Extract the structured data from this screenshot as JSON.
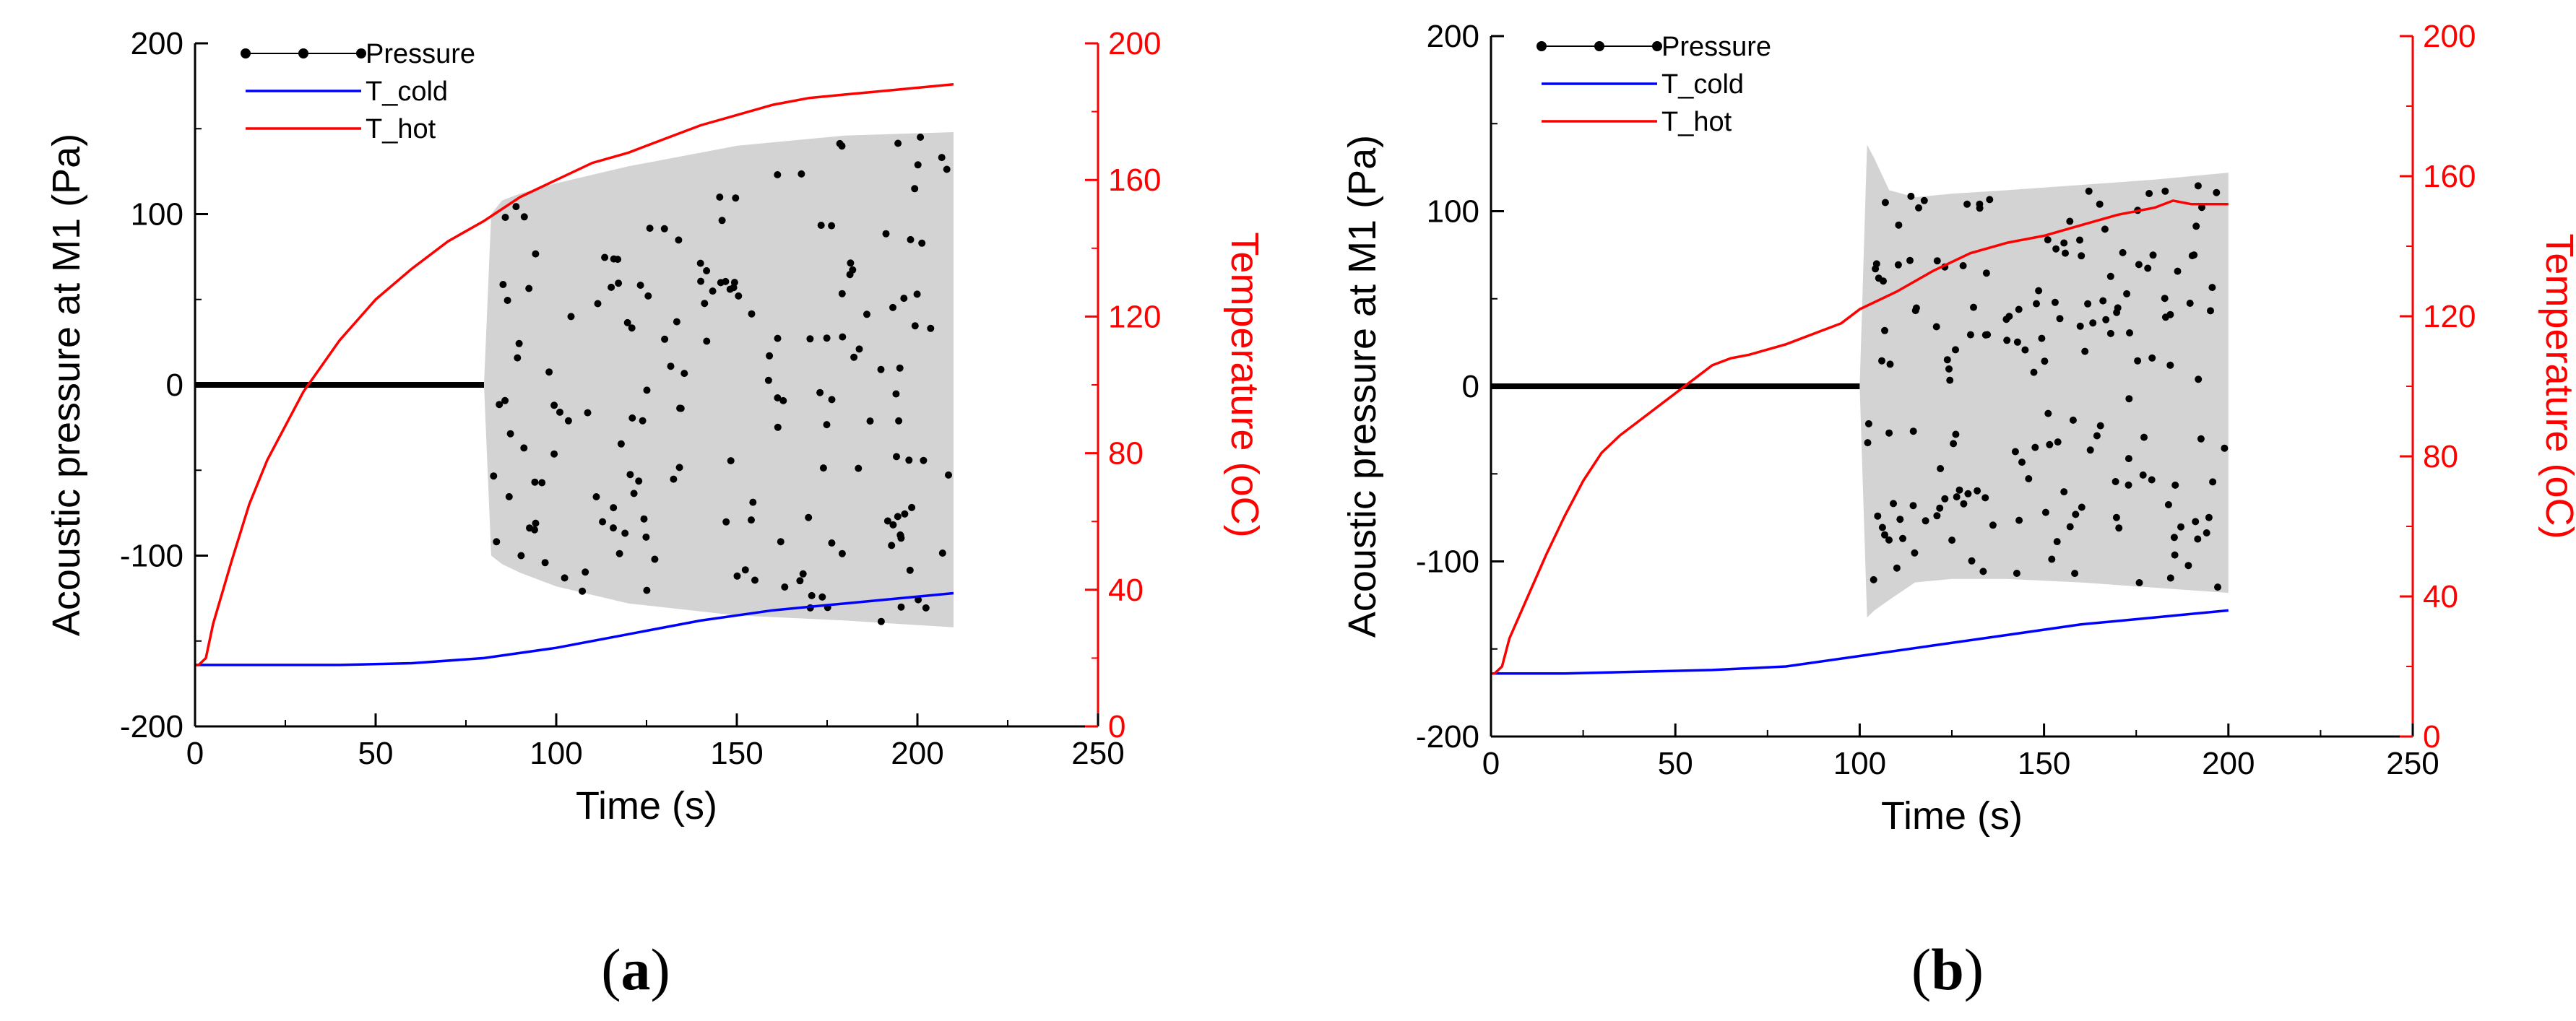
{
  "chart_data": [
    {
      "type": "line",
      "panel_label_parts": [
        "(",
        "a",
        ")"
      ],
      "xlabel": "Time (s)",
      "ylabel_left": "Acoustic pressure at M1 (Pa)",
      "ylabel_right": "Temperature (oC)",
      "xlim": [
        0,
        250
      ],
      "ylim_left": [
        -200,
        200
      ],
      "ylim_right": [
        0,
        200
      ],
      "xticks": [
        0,
        50,
        100,
        150,
        200,
        250
      ],
      "yticks_left": [
        -200,
        -100,
        0,
        100,
        200
      ],
      "yticks_right": [
        0,
        40,
        80,
        120,
        160,
        200
      ],
      "legend": [
        "Pressure",
        "T_cold",
        "T_hot"
      ],
      "colors": {
        "pressure": "#000000",
        "band": "#d3d3d3",
        "t_cold": "#0000ff",
        "t_hot": "#ff0000",
        "right_axis": "#ff0000"
      },
      "series": [
        {
          "name": "Pressure",
          "axis": "left",
          "onset_time": 80,
          "silent_value": 0,
          "envelope": {
            "t": [
              80,
              82,
              85,
              90,
              100,
              120,
              150,
              180,
              210
            ],
            "upper": [
              0,
              100,
              108,
              112,
              118,
              128,
              140,
              146,
              148
            ],
            "lower": [
              0,
              -100,
              -105,
              -110,
              -118,
              -128,
              -135,
              -138,
              -142
            ]
          }
        },
        {
          "name": "T_cold",
          "axis": "right",
          "x": [
            0,
            20,
            40,
            60,
            80,
            100,
            120,
            140,
            160,
            180,
            200,
            210
          ],
          "y": [
            18,
            18,
            18,
            18.5,
            20,
            23,
            27,
            31,
            34,
            36,
            38,
            39
          ]
        },
        {
          "name": "T_hot",
          "axis": "right",
          "x": [
            0,
            1,
            3,
            5,
            10,
            15,
            20,
            25,
            30,
            40,
            50,
            60,
            70,
            80,
            90,
            100,
            110,
            120,
            130,
            140,
            150,
            160,
            170,
            180,
            190,
            200,
            210
          ],
          "y": [
            18,
            18,
            20,
            30,
            48,
            65,
            78,
            88,
            98,
            113,
            125,
            134,
            142,
            148,
            155,
            160,
            165,
            168,
            172,
            176,
            179,
            182,
            184,
            185,
            186,
            187,
            188
          ]
        }
      ]
    },
    {
      "type": "line",
      "panel_label_parts": [
        "(",
        "b",
        ")"
      ],
      "xlabel": "Time (s)",
      "ylabel_left": "Acoustic pressure at M1 (Pa)",
      "ylabel_right": "Temperature (oC)",
      "xlim": [
        0,
        250
      ],
      "ylim_left": [
        -200,
        200
      ],
      "ylim_right": [
        0,
        200
      ],
      "xticks": [
        0,
        50,
        100,
        150,
        200,
        250
      ],
      "yticks_left": [
        -200,
        -100,
        0,
        100,
        200
      ],
      "yticks_right": [
        0,
        40,
        80,
        120,
        160,
        200
      ],
      "legend": [
        "Pressure",
        "T_cold",
        "T_hot"
      ],
      "colors": {
        "pressure": "#000000",
        "band": "#d3d3d3",
        "t_cold": "#0000ff",
        "t_hot": "#ff0000",
        "right_axis": "#ff0000"
      },
      "series": [
        {
          "name": "Pressure",
          "axis": "left",
          "onset_time": 100,
          "silent_value": 0,
          "envelope": {
            "t": [
              100,
              102,
              104,
              108,
              115,
              125,
              140,
              160,
              180,
              200
            ],
            "upper": [
              0,
              138,
              130,
              112,
              108,
              110,
              112,
              115,
              118,
              122
            ],
            "lower": [
              0,
              -132,
              -128,
              -122,
              -112,
              -110,
              -110,
              -112,
              -115,
              -118
            ]
          }
        },
        {
          "name": "T_cold",
          "axis": "right",
          "x": [
            0,
            20,
            40,
            60,
            80,
            100,
            120,
            140,
            160,
            180,
            200
          ],
          "y": [
            18,
            18,
            18.5,
            19,
            20,
            23,
            26,
            29,
            32,
            34,
            36
          ]
        },
        {
          "name": "T_hot",
          "axis": "right",
          "x": [
            0,
            1,
            3,
            5,
            10,
            15,
            20,
            25,
            30,
            35,
            40,
            50,
            55,
            60,
            65,
            70,
            80,
            90,
            95,
            100,
            110,
            120,
            130,
            140,
            150,
            160,
            170,
            180,
            185,
            190,
            200
          ],
          "y": [
            18,
            18,
            20,
            28,
            40,
            52,
            63,
            73,
            81,
            86,
            90,
            98,
            102,
            106,
            108,
            109,
            112,
            116,
            118,
            122,
            127,
            133,
            138,
            141,
            143,
            146,
            149,
            151,
            153,
            152,
            152
          ]
        }
      ]
    }
  ]
}
